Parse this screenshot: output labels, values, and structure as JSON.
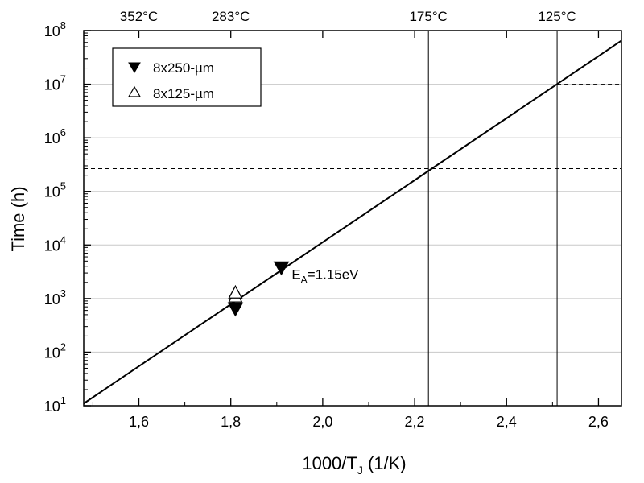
{
  "chart_data": {
    "type": "scatter",
    "title": "",
    "xlabel": "1000/T",
    "xlabel_sub": "J",
    "xlabel_unit": " (1/K)",
    "ylabel": "Time (h)",
    "xlim": [
      1.48,
      2.65
    ],
    "ylim": [
      10,
      100000000
    ],
    "yscale": "log",
    "x_ticks": [
      1.6,
      1.8,
      2.0,
      2.2,
      2.4,
      2.6
    ],
    "x_tick_labels": [
      "1,6",
      "1,8",
      "2,0",
      "2,2",
      "2,4",
      "2,6"
    ],
    "y_tick_bases": [
      "10",
      "10",
      "10",
      "10",
      "10",
      "10",
      "10",
      "10"
    ],
    "y_tick_exponents": [
      "1",
      "2",
      "3",
      "4",
      "5",
      "6",
      "7",
      "8"
    ],
    "grid": true,
    "legend_position": "top-left",
    "series": [
      {
        "name": "8x250-µm",
        "marker": "filled-down-triangle",
        "x": [
          1.81,
          1.91
        ],
        "y": [
          650,
          3800
        ]
      },
      {
        "name": "8x125-µm",
        "marker": "open-up-triangle",
        "x": [
          1.81,
          1.81
        ],
        "y": [
          1100,
          1300
        ]
      }
    ],
    "fit_line": {
      "x": [
        1.48,
        2.65
      ],
      "y": [
        11,
        65000000
      ]
    },
    "annotation": {
      "prefix": "E",
      "sub": "A",
      "suffix": "=1.15eV",
      "x": 1.95,
      "y": 2500
    },
    "top_axis": [
      {
        "label": "352°C",
        "x": 1.6
      },
      {
        "label": "283°C",
        "x": 1.8
      },
      {
        "label": "175°C",
        "x": 2.23
      },
      {
        "label": "125°C",
        "x": 2.51
      }
    ],
    "vertical_lines": [
      2.23,
      2.51
    ],
    "horizontal_dashed": [
      {
        "y": 10000000,
        "x_start": 2.51
      },
      {
        "y": 265000,
        "x_start": 1.48
      }
    ],
    "colors": {
      "marks": "#000000",
      "grid": "#c8c8c8",
      "background": "#ffffff"
    }
  }
}
